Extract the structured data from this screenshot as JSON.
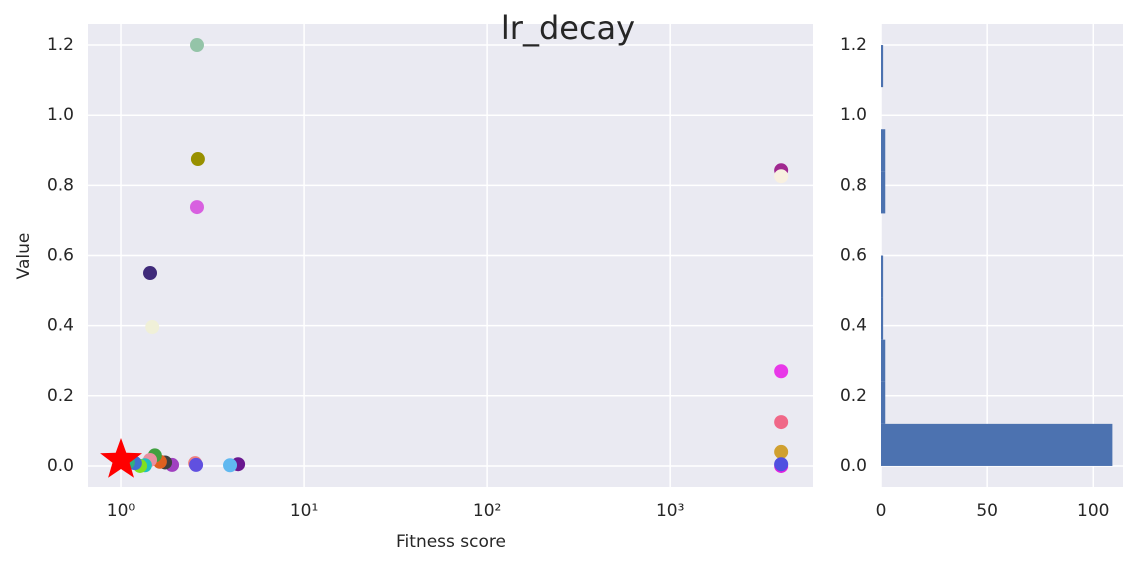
{
  "chart_data": [
    {
      "type": "scatter",
      "title": "lr_decay",
      "x_label": "Fitness score",
      "y_label": "Value",
      "log_x": true,
      "grid": true,
      "x": [
        2.6,
        2.63,
        2.6,
        1.44,
        1.48,
        4040,
        4040,
        4040,
        4040,
        4040,
        4040,
        4040,
        4.36,
        3.94,
        2.54,
        2.57,
        1.9,
        1.74,
        1.63,
        1.53,
        1.44,
        1.35,
        1.27,
        1.19,
        1.09
      ],
      "y": [
        1.2,
        0.875,
        0.738,
        0.55,
        0.396,
        0.843,
        0.826,
        0.27,
        0.125,
        0.04,
        0.0,
        0.005,
        0.005,
        0.002,
        0.008,
        0.003,
        0.003,
        0.01,
        0.012,
        0.03,
        0.017,
        0.002,
        0.0,
        0.008,
        0.01
      ],
      "colors": [
        "#94c4a8",
        "#989000",
        "#d860e0",
        "#3f2a7a",
        "#f0f0d8",
        "#a02890",
        "#f8f0e0",
        "#e838e8",
        "#f06888",
        "#d0a030",
        "#e020e0",
        "#5050e0",
        "#6a1890",
        "#60b8f0",
        "#f08080",
        "#6050e0",
        "#a040c0",
        "#404040",
        "#e06020",
        "#40a040",
        "#e890a0",
        "#20c0c0",
        "#80e020",
        "#4070d0",
        "#30b080"
      ],
      "highlight": {
        "x": 1,
        "y": 0.017,
        "color": "#ff0000",
        "marker": "star"
      },
      "xlim": [
        0.66,
        6030
      ],
      "xticks": [
        {
          "value": 1,
          "label": "10⁰"
        },
        {
          "value": 10,
          "label": "10¹"
        },
        {
          "value": 100,
          "label": "10²"
        },
        {
          "value": 1000,
          "label": "10³"
        }
      ],
      "ylim": [
        -0.06,
        1.26
      ],
      "yticks": [
        {
          "value": 0,
          "label": "0.0"
        },
        0.2,
        0.4,
        0.6,
        0.8,
        {
          "value": 1,
          "label": "1.0"
        },
        1.2
      ]
    },
    {
      "type": "histogram",
      "orientation": "horizontal",
      "grid": true,
      "color": "#4c72b0",
      "bins": [
        0,
        0.12,
        0.24,
        0.36,
        0.48,
        0.6,
        0.72,
        0.84,
        0.96,
        1.08,
        1.2
      ],
      "counts": [
        109,
        2,
        2,
        1,
        1,
        0,
        2,
        2,
        0,
        1
      ],
      "xlim": [
        0,
        114
      ],
      "xticks": [
        0,
        50,
        100
      ],
      "ylim": [
        -0.06,
        1.26
      ],
      "yticks": [
        {
          "value": 0,
          "label": "0.0"
        },
        0.2,
        0.4,
        0.6,
        0.8,
        {
          "value": 1,
          "label": "1.0"
        },
        1.2
      ]
    }
  ]
}
